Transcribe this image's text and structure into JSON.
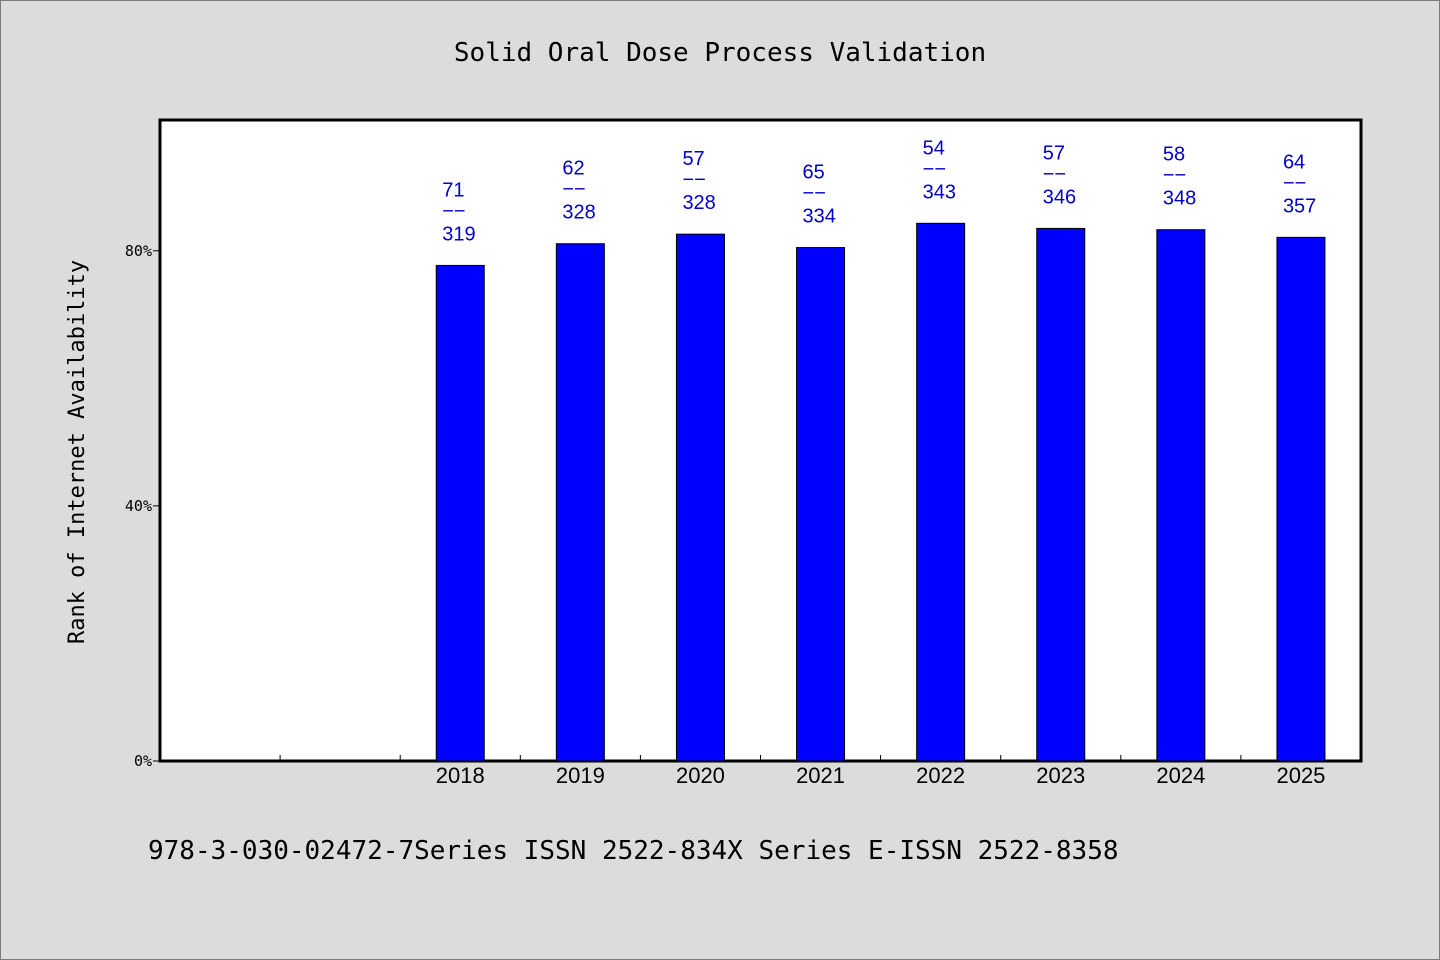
{
  "chart_data": {
    "type": "bar",
    "title": "Solid Oral Dose Process Validation",
    "ylabel": "Rank of Internet Availability",
    "xlabel": "",
    "categories": [
      "2018",
      "2019",
      "2020",
      "2021",
      "2022",
      "2023",
      "2024",
      "2025"
    ],
    "empty_slots_before": 2,
    "numerators": [
      71,
      62,
      57,
      65,
      54,
      57,
      58,
      64
    ],
    "denominators": [
      319,
      328,
      328,
      334,
      343,
      346,
      348,
      357
    ],
    "values": [
      77.7,
      81.1,
      82.6,
      80.5,
      84.3,
      83.5,
      83.3,
      82.1
    ],
    "label_separator": "−−",
    "yticks": [
      {
        "value": 0,
        "label": "0%"
      },
      {
        "value": 40,
        "label": "40%"
      },
      {
        "value": 80,
        "label": "80%"
      }
    ],
    "ylim": [
      0,
      100.5
    ],
    "grid": false,
    "legend": "none",
    "bar_color": "#0000ff",
    "label_color": "#0000c8"
  },
  "footer": {
    "text": "978-3-030-02472-7Series ISSN 2522-834X Series E-ISSN 2522-8358"
  }
}
